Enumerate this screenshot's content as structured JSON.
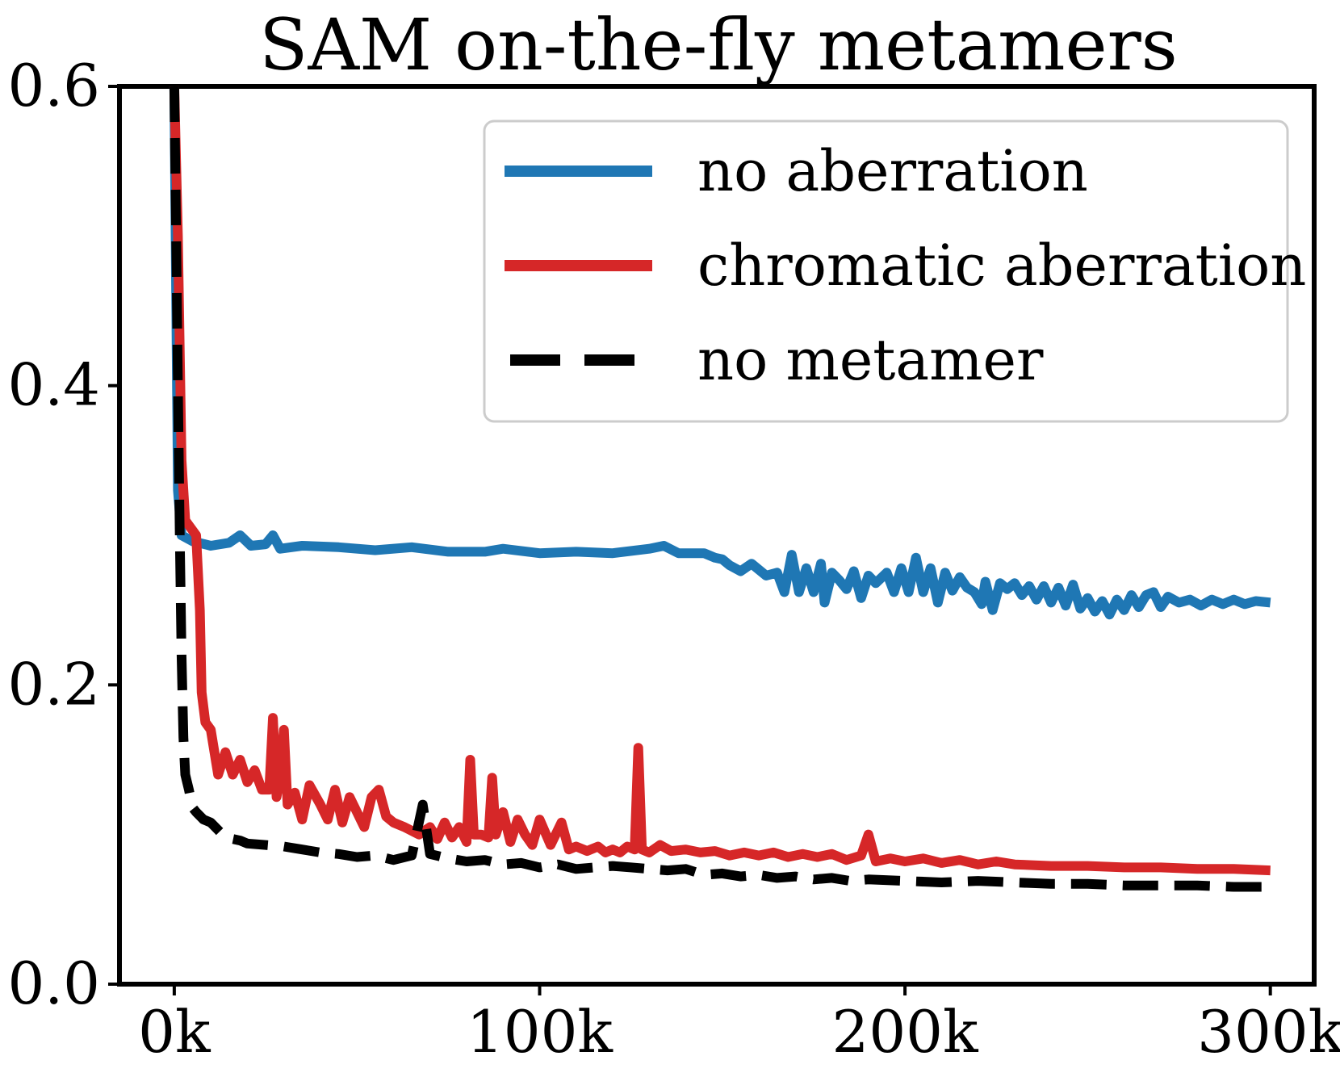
{
  "chart_data": {
    "type": "line",
    "title": "SAM on-the-fly metamers",
    "xlabel": "",
    "ylabel": "",
    "xlim": [
      -15000,
      312000
    ],
    "ylim": [
      0.0,
      0.6
    ],
    "xticks": [
      {
        "value": 0,
        "label": "0k"
      },
      {
        "value": 100000,
        "label": "100k"
      },
      {
        "value": 200000,
        "label": "200k"
      },
      {
        "value": 300000,
        "label": "300k"
      }
    ],
    "yticks": [
      {
        "value": 0.0,
        "label": "0.0"
      },
      {
        "value": 0.2,
        "label": "0.2"
      },
      {
        "value": 0.4,
        "label": "0.4"
      },
      {
        "value": 0.6,
        "label": "0.6"
      }
    ],
    "grid": false,
    "legend": {
      "position": "top-right"
    },
    "series": [
      {
        "name": "no aberration",
        "color": "#1f77b4",
        "style": "solid",
        "points": [
          [
            0,
            0.6
          ],
          [
            1000,
            0.33
          ],
          [
            2000,
            0.3
          ],
          [
            5000,
            0.296
          ],
          [
            10000,
            0.293
          ],
          [
            15000,
            0.295
          ],
          [
            18000,
            0.3
          ],
          [
            21000,
            0.293
          ],
          [
            25000,
            0.294
          ],
          [
            27000,
            0.3
          ],
          [
            29000,
            0.291
          ],
          [
            35000,
            0.293
          ],
          [
            45000,
            0.292
          ],
          [
            55000,
            0.29
          ],
          [
            65000,
            0.292
          ],
          [
            75000,
            0.289
          ],
          [
            85000,
            0.289
          ],
          [
            90000,
            0.291
          ],
          [
            100000,
            0.288
          ],
          [
            110000,
            0.289
          ],
          [
            120000,
            0.288
          ],
          [
            130000,
            0.291
          ],
          [
            134000,
            0.293
          ],
          [
            138000,
            0.288
          ],
          [
            145000,
            0.288
          ],
          [
            148000,
            0.285
          ],
          [
            150000,
            0.284
          ],
          [
            152000,
            0.28
          ],
          [
            155000,
            0.276
          ],
          [
            158000,
            0.281
          ],
          [
            162000,
            0.273
          ],
          [
            165000,
            0.275
          ],
          [
            167000,
            0.262
          ],
          [
            169000,
            0.287
          ],
          [
            171000,
            0.262
          ],
          [
            173000,
            0.278
          ],
          [
            175000,
            0.262
          ],
          [
            177000,
            0.281
          ],
          [
            178000,
            0.255
          ],
          [
            180000,
            0.275
          ],
          [
            182000,
            0.27
          ],
          [
            184000,
            0.264
          ],
          [
            186000,
            0.276
          ],
          [
            188000,
            0.258
          ],
          [
            190000,
            0.273
          ],
          [
            192000,
            0.268
          ],
          [
            195000,
            0.275
          ],
          [
            197000,
            0.262
          ],
          [
            199000,
            0.278
          ],
          [
            201000,
            0.262
          ],
          [
            203000,
            0.285
          ],
          [
            205000,
            0.262
          ],
          [
            207000,
            0.278
          ],
          [
            209000,
            0.255
          ],
          [
            211000,
            0.275
          ],
          [
            213000,
            0.263
          ],
          [
            215000,
            0.272
          ],
          [
            217000,
            0.265
          ],
          [
            219000,
            0.262
          ],
          [
            221000,
            0.254
          ],
          [
            222000,
            0.269
          ],
          [
            224000,
            0.25
          ],
          [
            226000,
            0.268
          ],
          [
            228000,
            0.264
          ],
          [
            230000,
            0.268
          ],
          [
            232000,
            0.26
          ],
          [
            234000,
            0.266
          ],
          [
            236000,
            0.257
          ],
          [
            238000,
            0.266
          ],
          [
            240000,
            0.255
          ],
          [
            242000,
            0.265
          ],
          [
            244000,
            0.253
          ],
          [
            246000,
            0.267
          ],
          [
            248000,
            0.251
          ],
          [
            250000,
            0.258
          ],
          [
            252000,
            0.249
          ],
          [
            254000,
            0.256
          ],
          [
            256000,
            0.247
          ],
          [
            258000,
            0.257
          ],
          [
            260000,
            0.25
          ],
          [
            262000,
            0.26
          ],
          [
            264000,
            0.252
          ],
          [
            266000,
            0.26
          ],
          [
            268000,
            0.262
          ],
          [
            270000,
            0.252
          ],
          [
            272000,
            0.259
          ],
          [
            275000,
            0.255
          ],
          [
            278000,
            0.257
          ],
          [
            281000,
            0.253
          ],
          [
            284000,
            0.257
          ],
          [
            287000,
            0.254
          ],
          [
            290000,
            0.257
          ],
          [
            293000,
            0.254
          ],
          [
            296000,
            0.256
          ],
          [
            300000,
            0.255
          ]
        ]
      },
      {
        "name": "chromatic aberration",
        "color": "#d62728",
        "style": "solid",
        "points": [
          [
            0,
            0.6
          ],
          [
            1000,
            0.5
          ],
          [
            2000,
            0.35
          ],
          [
            3000,
            0.31
          ],
          [
            6000,
            0.3
          ],
          [
            7000,
            0.25
          ],
          [
            7500,
            0.195
          ],
          [
            8500,
            0.175
          ],
          [
            10000,
            0.17
          ],
          [
            12000,
            0.14
          ],
          [
            14000,
            0.155
          ],
          [
            16000,
            0.14
          ],
          [
            18000,
            0.15
          ],
          [
            20000,
            0.135
          ],
          [
            22000,
            0.143
          ],
          [
            24000,
            0.13
          ],
          [
            26000,
            0.13
          ],
          [
            27000,
            0.178
          ],
          [
            28000,
            0.125
          ],
          [
            29000,
            0.14
          ],
          [
            30000,
            0.17
          ],
          [
            31000,
            0.12
          ],
          [
            33000,
            0.128
          ],
          [
            35000,
            0.11
          ],
          [
            37000,
            0.133
          ],
          [
            40000,
            0.12
          ],
          [
            42000,
            0.11
          ],
          [
            44000,
            0.13
          ],
          [
            46000,
            0.108
          ],
          [
            48000,
            0.125
          ],
          [
            50000,
            0.115
          ],
          [
            52000,
            0.105
          ],
          [
            54000,
            0.125
          ],
          [
            56000,
            0.13
          ],
          [
            58000,
            0.112
          ],
          [
            60000,
            0.108
          ],
          [
            63000,
            0.105
          ],
          [
            67000,
            0.1
          ],
          [
            70000,
            0.105
          ],
          [
            72000,
            0.097
          ],
          [
            74000,
            0.108
          ],
          [
            76000,
            0.098
          ],
          [
            78000,
            0.105
          ],
          [
            80000,
            0.095
          ],
          [
            81000,
            0.15
          ],
          [
            82000,
            0.1
          ],
          [
            84000,
            0.1
          ],
          [
            86000,
            0.098
          ],
          [
            87000,
            0.138
          ],
          [
            88000,
            0.1
          ],
          [
            90000,
            0.115
          ],
          [
            92000,
            0.095
          ],
          [
            94000,
            0.11
          ],
          [
            96000,
            0.1
          ],
          [
            98000,
            0.093
          ],
          [
            100000,
            0.11
          ],
          [
            103000,
            0.093
          ],
          [
            106000,
            0.108
          ],
          [
            108000,
            0.09
          ],
          [
            110000,
            0.092
          ],
          [
            113000,
            0.089
          ],
          [
            116000,
            0.092
          ],
          [
            118000,
            0.088
          ],
          [
            120000,
            0.09
          ],
          [
            122000,
            0.088
          ],
          [
            124000,
            0.092
          ],
          [
            126000,
            0.09
          ],
          [
            127000,
            0.158
          ],
          [
            128000,
            0.09
          ],
          [
            130000,
            0.088
          ],
          [
            133000,
            0.093
          ],
          [
            136000,
            0.089
          ],
          [
            140000,
            0.09
          ],
          [
            144000,
            0.088
          ],
          [
            148000,
            0.089
          ],
          [
            152000,
            0.086
          ],
          [
            156000,
            0.088
          ],
          [
            160000,
            0.086
          ],
          [
            164000,
            0.088
          ],
          [
            168000,
            0.085
          ],
          [
            172000,
            0.087
          ],
          [
            176000,
            0.085
          ],
          [
            180000,
            0.087
          ],
          [
            184000,
            0.083
          ],
          [
            188000,
            0.086
          ],
          [
            190000,
            0.1
          ],
          [
            192000,
            0.082
          ],
          [
            196000,
            0.084
          ],
          [
            200000,
            0.082
          ],
          [
            205000,
            0.084
          ],
          [
            210000,
            0.081
          ],
          [
            215000,
            0.083
          ],
          [
            220000,
            0.08
          ],
          [
            225000,
            0.082
          ],
          [
            230000,
            0.08
          ],
          [
            240000,
            0.079
          ],
          [
            250000,
            0.079
          ],
          [
            260000,
            0.078
          ],
          [
            270000,
            0.078
          ],
          [
            280000,
            0.077
          ],
          [
            290000,
            0.077
          ],
          [
            300000,
            0.076
          ]
        ]
      },
      {
        "name": "no metamer",
        "color": "#000000",
        "style": "dashed",
        "points": [
          [
            0,
            0.6
          ],
          [
            500,
            0.5
          ],
          [
            1000,
            0.4
          ],
          [
            1500,
            0.3
          ],
          [
            2000,
            0.22
          ],
          [
            2500,
            0.165
          ],
          [
            3000,
            0.14
          ],
          [
            4000,
            0.13
          ],
          [
            5000,
            0.118
          ],
          [
            6000,
            0.115
          ],
          [
            8000,
            0.11
          ],
          [
            10000,
            0.108
          ],
          [
            12000,
            0.103
          ],
          [
            14000,
            0.098
          ],
          [
            16000,
            0.097
          ],
          [
            18000,
            0.096
          ],
          [
            20000,
            0.094
          ],
          [
            25000,
            0.093
          ],
          [
            30000,
            0.092
          ],
          [
            35000,
            0.09
          ],
          [
            40000,
            0.088
          ],
          [
            45000,
            0.087
          ],
          [
            50000,
            0.085
          ],
          [
            55000,
            0.086
          ],
          [
            60000,
            0.083
          ],
          [
            65000,
            0.086
          ],
          [
            68000,
            0.12
          ],
          [
            70000,
            0.087
          ],
          [
            75000,
            0.084
          ],
          [
            80000,
            0.082
          ],
          [
            85000,
            0.083
          ],
          [
            90000,
            0.08
          ],
          [
            95000,
            0.081
          ],
          [
            100000,
            0.078
          ],
          [
            105000,
            0.08
          ],
          [
            110000,
            0.077
          ],
          [
            115000,
            0.078
          ],
          [
            120000,
            0.079
          ],
          [
            125000,
            0.078
          ],
          [
            130000,
            0.077
          ],
          [
            135000,
            0.076
          ],
          [
            140000,
            0.077
          ],
          [
            145000,
            0.073
          ],
          [
            150000,
            0.074
          ],
          [
            155000,
            0.072
          ],
          [
            160000,
            0.073
          ],
          [
            165000,
            0.071
          ],
          [
            170000,
            0.072
          ],
          [
            175000,
            0.07
          ],
          [
            180000,
            0.071
          ],
          [
            185000,
            0.069
          ],
          [
            190000,
            0.07
          ],
          [
            200000,
            0.069
          ],
          [
            210000,
            0.068
          ],
          [
            220000,
            0.069
          ],
          [
            230000,
            0.068
          ],
          [
            240000,
            0.067
          ],
          [
            250000,
            0.067
          ],
          [
            260000,
            0.066
          ],
          [
            270000,
            0.066
          ],
          [
            280000,
            0.066
          ],
          [
            290000,
            0.065
          ],
          [
            300000,
            0.065
          ]
        ]
      }
    ]
  }
}
